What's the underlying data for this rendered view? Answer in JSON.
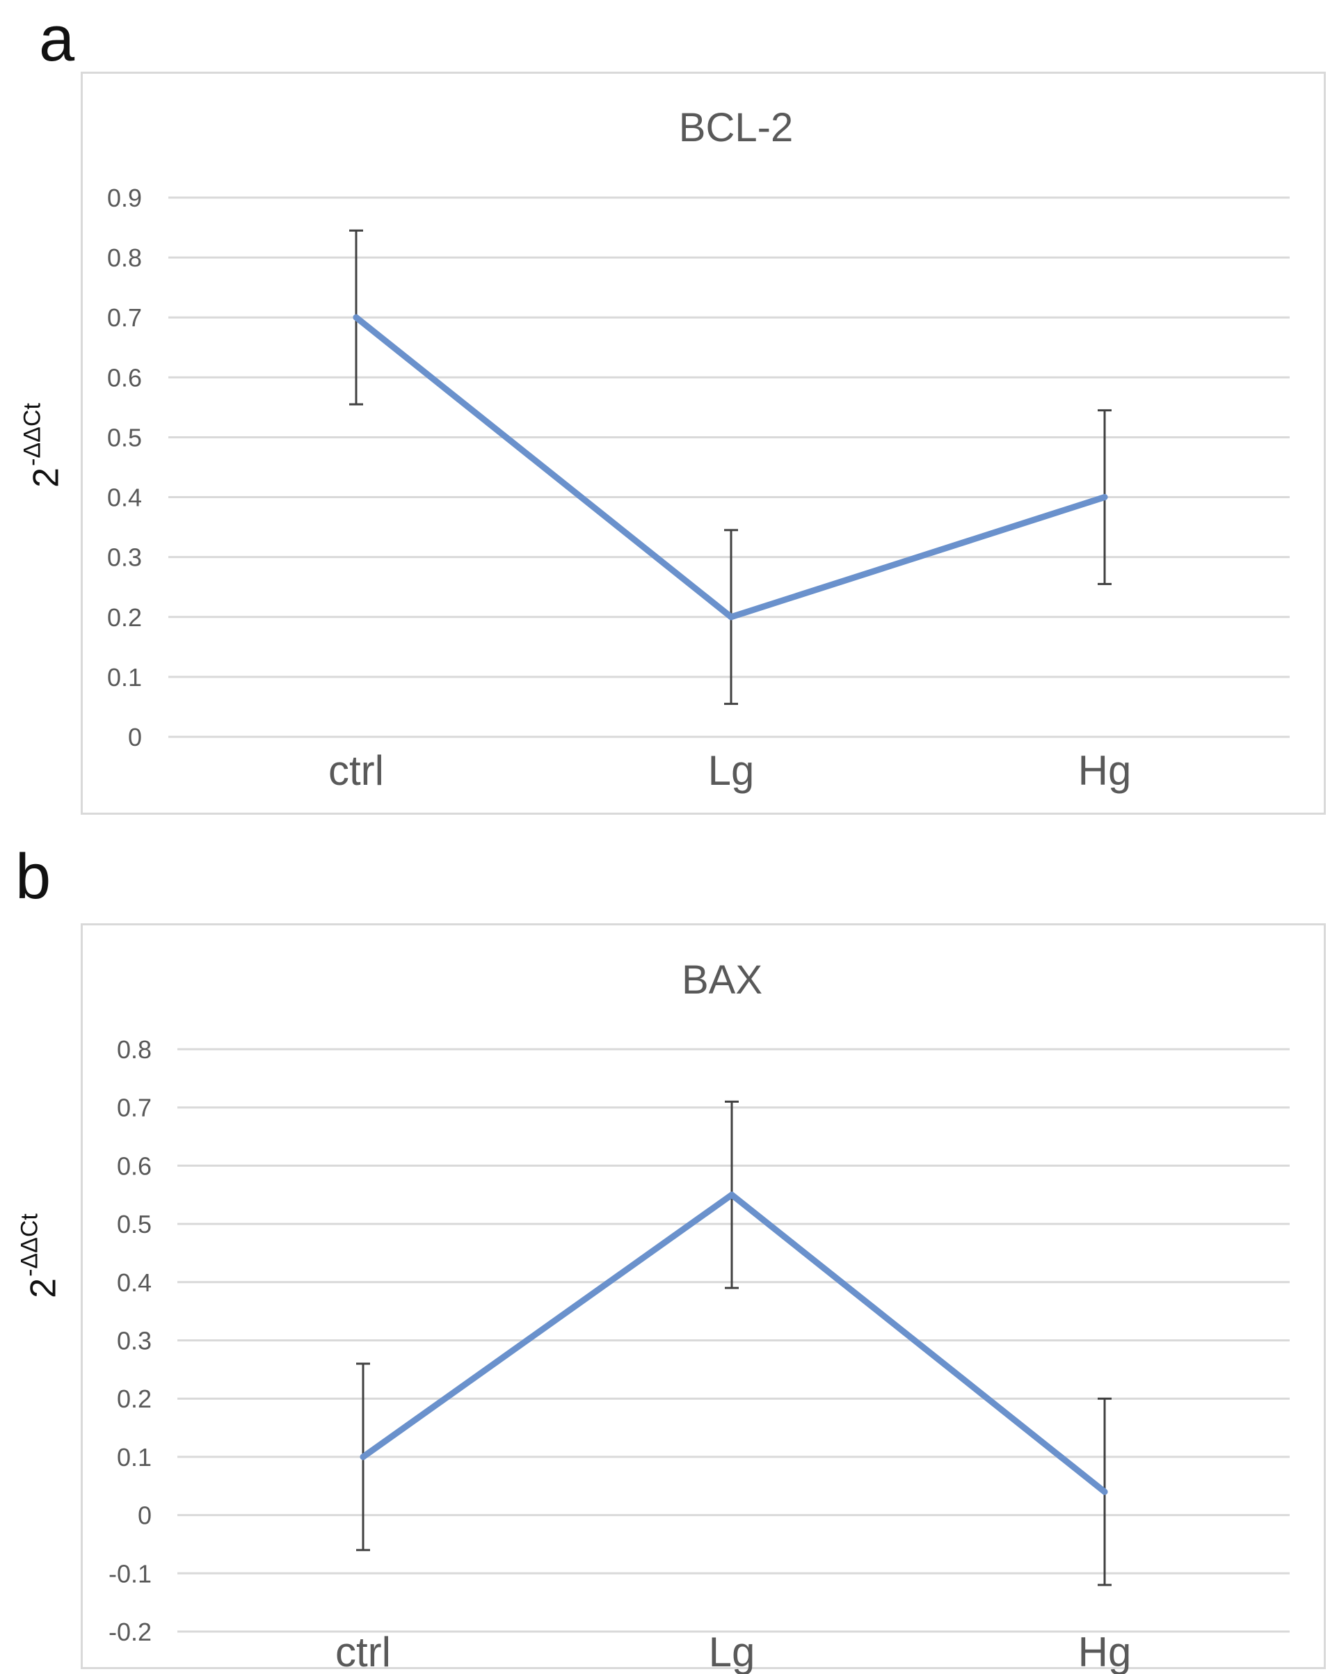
{
  "panels": [
    {
      "letter": "a",
      "ylabel_base": "2",
      "ylabel_sup": "-ΔΔCt"
    },
    {
      "letter": "b",
      "ylabel_base": "2",
      "ylabel_sup": "-ΔΔCt"
    }
  ],
  "colors": {
    "line": "#6a91cc",
    "error_bar": "#404040",
    "grid": "#d9d9d9",
    "frame": "#d9d9d9",
    "text": "#595959"
  },
  "chart_data": [
    {
      "type": "line",
      "title": "BCL-2",
      "categories": [
        "ctrl",
        "Lg",
        "Hg"
      ],
      "series": [
        {
          "values": [
            0.7,
            0.2,
            0.4
          ],
          "error": [
            0.145,
            0.145,
            0.145
          ]
        }
      ],
      "ylim": [
        0,
        0.9
      ],
      "yticks": [
        "0",
        "0.1",
        "0.2",
        "0.3",
        "0.4",
        "0.5",
        "0.6",
        "0.7",
        "0.8",
        "0.9"
      ],
      "grid": true,
      "legend": "none"
    },
    {
      "type": "line",
      "title": "BAX",
      "categories": [
        "ctrl",
        "Lg",
        "Hg"
      ],
      "series": [
        {
          "values": [
            0.1,
            0.55,
            0.04
          ],
          "error": [
            0.16,
            0.16,
            0.16
          ]
        }
      ],
      "ylim": [
        -0.2,
        0.8
      ],
      "yticks": [
        "-0.2",
        "-0.1",
        "0",
        "0.1",
        "0.2",
        "0.3",
        "0.4",
        "0.5",
        "0.6",
        "0.7",
        "0.8"
      ],
      "grid": true,
      "legend": "none"
    }
  ]
}
